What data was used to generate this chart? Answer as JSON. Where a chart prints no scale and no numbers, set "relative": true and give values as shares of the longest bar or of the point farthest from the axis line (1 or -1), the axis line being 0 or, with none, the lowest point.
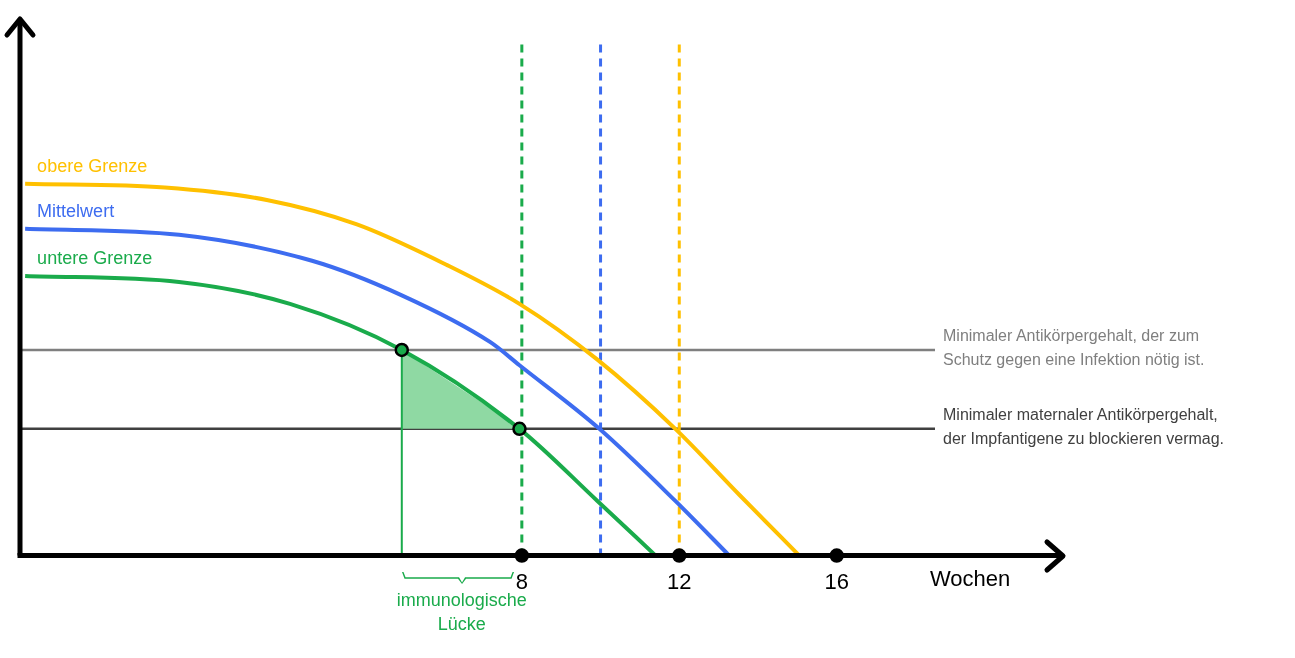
{
  "chart_data": {
    "type": "line",
    "relative": true,
    "xlabel": "Wochen",
    "xlim": [
      -4.75,
      21.8
    ],
    "xticks": [
      8,
      12,
      16
    ],
    "grid": false,
    "legend": false,
    "series": [
      {
        "name": "obere Grenze",
        "color": "#ffc000",
        "x": [
          -4.62,
          -1.07,
          1.55,
          3.81,
          6.07,
          7.94,
          9.92,
          11.9,
          13.53,
          15.05
        ],
        "values": [
          1.0,
          0.99,
          0.956,
          0.891,
          0.783,
          0.677,
          0.527,
          0.341,
          0.163,
          0
        ]
      },
      {
        "name": "Mittelwert",
        "color": "#3d6cf0",
        "x": [
          -4.62,
          -0.71,
          2.67,
          4.95,
          7.2,
          7.94,
          9.97,
          11.9,
          13.27
        ],
        "values": [
          0.879,
          0.863,
          0.793,
          0.7,
          0.574,
          0.512,
          0.341,
          0.147,
          0
        ]
      },
      {
        "name": "untere Grenze",
        "color": "#1aab4b",
        "x": [
          -4.62,
          -0.71,
          2.11,
          4.95,
          7.94,
          9.92,
          11.4
        ],
        "values": [
          0.752,
          0.736,
          0.677,
          0.553,
          0.341,
          0.147,
          0
        ]
      },
      {
        "type": "area",
        "color": "#8fd9a3",
        "x": [
          4.95,
          4.95,
          8
        ],
        "values": [
          0.341,
          0.553,
          0.341
        ]
      },
      {
        "type": "line",
        "color": "#1aab4b",
        "x": [
          4.95,
          4.95
        ],
        "values": [
          0,
          0.553
        ]
      },
      {
        "type": "scatter",
        "color": "#1aab4b",
        "marker": "circle",
        "x": [
          4.95,
          7.94
        ],
        "values": [
          0.553,
          0.341
        ]
      },
      {
        "type": "scatter",
        "color": "#000000",
        "marker": "circle",
        "x": [
          8,
          12,
          16
        ],
        "values": [
          0,
          0,
          0
        ]
      }
    ],
    "ref_lines": [
      {
        "axis": "y",
        "value": 0.553,
        "label": "Minimaler Antikörpergehalt, der zum Schutz gegen eine Infektion nötig ist.",
        "color": "#7f7f7f",
        "line_style": "solid"
      },
      {
        "axis": "y",
        "value": 0.341,
        "label": "Minimaler maternaler Antikörpergehalt, der Impfantigene zu blockieren vermag.",
        "color": "#404040",
        "line_style": "solid"
      },
      {
        "axis": "x",
        "value": 8,
        "color": "#1aab4b",
        "line_style": "dashed"
      },
      {
        "axis": "x",
        "value": 10,
        "color": "#3d6cf0",
        "line_style": "dashed"
      },
      {
        "axis": "x",
        "value": 12,
        "color": "#ffc000",
        "line_style": "dashed"
      }
    ],
    "annotations": [
      "immunologische Lücke"
    ]
  }
}
